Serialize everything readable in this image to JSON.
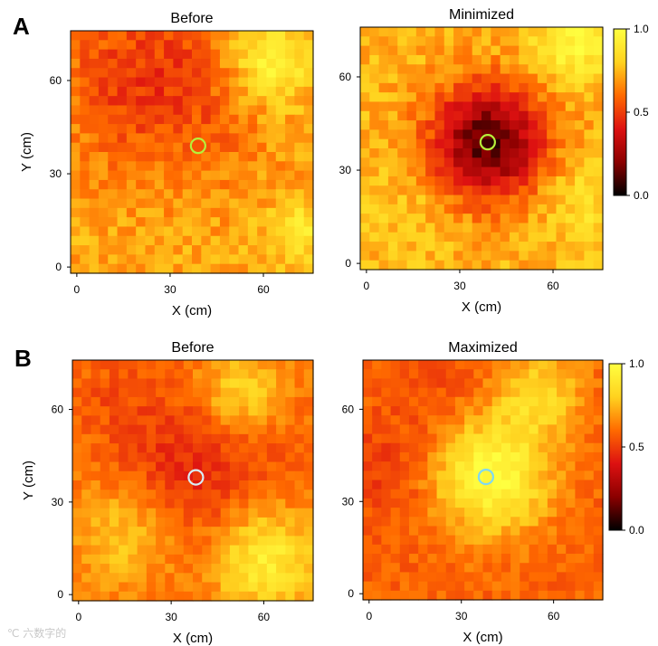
{
  "watermark": "℃ 六数字的",
  "colorbar": {
    "ticks": [
      "1.0",
      "0.5",
      "0.0"
    ],
    "stops": [
      "#000000",
      "#8b0000",
      "#dd1111",
      "#ff6a00",
      "#ffd21f",
      "#ffff40"
    ]
  },
  "chart_data": [
    {
      "type": "heatmap",
      "panel_letter": "A",
      "title": "Before",
      "xlabel": "X (cm)",
      "ylabel": "Y (cm)",
      "xlim": [
        -2,
        76
      ],
      "ylim": [
        -2,
        76
      ],
      "xticks": [
        "0",
        "30",
        "60"
      ],
      "yticks": [
        "0",
        "30",
        "60"
      ],
      "grid": [
        26,
        26
      ],
      "range": [
        0.0,
        1.0
      ],
      "field": {
        "base": 0.72,
        "noise": 0.08,
        "seed": 11,
        "blobs": [
          [
            30,
            58,
            22,
            -0.22
          ],
          [
            62,
            66,
            10,
            0.28
          ],
          [
            72,
            12,
            7,
            0.18
          ],
          [
            10,
            62,
            14,
            -0.06
          ]
        ]
      },
      "marker": {
        "x": 39,
        "y": 39,
        "color": "#b6f03a"
      }
    },
    {
      "type": "heatmap",
      "panel_letter": "",
      "title": "Minimized",
      "xlabel": "X (cm)",
      "ylabel": "",
      "xlim": [
        -2,
        76
      ],
      "ylim": [
        -2,
        76
      ],
      "xticks": [
        "0",
        "30",
        "60"
      ],
      "yticks": [
        "0",
        "30",
        "60"
      ],
      "grid": [
        26,
        26
      ],
      "range": [
        0.0,
        1.0
      ],
      "field": {
        "base": 0.74,
        "noise": 0.08,
        "seed": 23,
        "blobs": [
          [
            39,
            39,
            13,
            -0.62
          ],
          [
            66,
            70,
            9,
            0.22
          ],
          [
            70,
            20,
            10,
            0.12
          ],
          [
            10,
            20,
            12,
            0.05
          ]
        ]
      },
      "marker": {
        "x": 39,
        "y": 39,
        "color": "#b6f03a"
      },
      "colorbar": true
    },
    {
      "type": "heatmap",
      "panel_letter": "B",
      "title": "Before",
      "xlabel": "X (cm)",
      "ylabel": "Y (cm)",
      "xlim": [
        -2,
        76
      ],
      "ylim": [
        -2,
        76
      ],
      "xticks": [
        "0",
        "30",
        "60"
      ],
      "yticks": [
        "0",
        "30",
        "60"
      ],
      "grid": [
        26,
        26
      ],
      "range": [
        0.0,
        1.0
      ],
      "field": {
        "base": 0.62,
        "noise": 0.06,
        "seed": 37,
        "blobs": [
          [
            38,
            42,
            20,
            -0.18
          ],
          [
            60,
            12,
            12,
            0.32
          ],
          [
            15,
            20,
            12,
            0.2
          ],
          [
            52,
            65,
            10,
            0.25
          ],
          [
            8,
            65,
            8,
            -0.05
          ]
        ]
      },
      "marker": {
        "x": 38,
        "y": 38,
        "color": "#d8ecf6"
      }
    },
    {
      "type": "heatmap",
      "panel_letter": "",
      "title": "Maximized",
      "xlabel": "X (cm)",
      "ylabel": "",
      "xlim": [
        -2,
        76
      ],
      "ylim": [
        -2,
        76
      ],
      "xticks": [
        "0",
        "30",
        "60"
      ],
      "yticks": [
        "0",
        "30",
        "60"
      ],
      "grid": [
        26,
        26
      ],
      "range": [
        0.0,
        1.0
      ],
      "field": {
        "base": 0.58,
        "noise": 0.06,
        "seed": 51,
        "blobs": [
          [
            40,
            38,
            13,
            0.42
          ],
          [
            55,
            65,
            10,
            0.25
          ],
          [
            5,
            40,
            12,
            -0.08
          ],
          [
            22,
            70,
            10,
            -0.06
          ]
        ]
      },
      "marker": {
        "x": 38,
        "y": 38,
        "color": "#7fd8f2"
      },
      "colorbar": true
    }
  ]
}
